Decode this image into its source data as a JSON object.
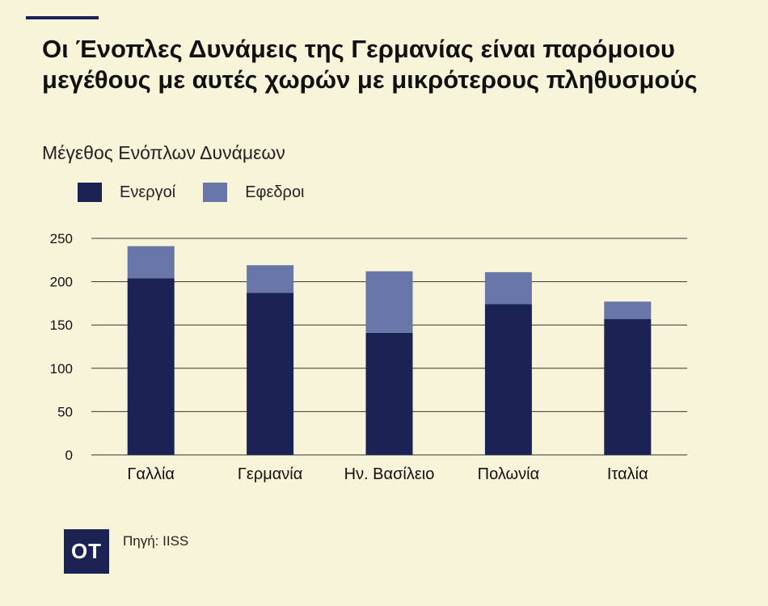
{
  "title": "Οι Ένοπλες Δυνάμεις της Γερμανίας είναι παρόμοιου μεγέθους με αυτές χωρών με μικρότερους πληθυσμούς",
  "colors": {
    "background": "#f8f4d9",
    "active": "#1a2354",
    "reserve": "#6877a8",
    "grid": "#333333"
  },
  "chart_data": {
    "type": "bar",
    "stacked": true,
    "subtitle": "Μέγεθος Ενόπλων Δυνάμεων",
    "categories": [
      "Γαλλία",
      "Γερμανία",
      "Ην. Βασίλειο",
      "Πολωνία",
      "Ιταλία"
    ],
    "series": [
      {
        "name": "Ενεργοί",
        "color": "#1a2354",
        "values": [
          204,
          187,
          141,
          174,
          157
        ]
      },
      {
        "name": "Εφεδροί",
        "color": "#6877a8",
        "values": [
          37,
          32,
          71,
          37,
          20
        ]
      }
    ],
    "ylim": [
      0,
      250
    ],
    "yticks": [
      0,
      50,
      100,
      150,
      200,
      250
    ],
    "grid": true,
    "legend_position": "top-left"
  },
  "legend": [
    {
      "label": "Ενεργοί",
      "color": "#1a2354"
    },
    {
      "label": "Εφεδροι",
      "color": "#6877a8"
    }
  ],
  "logo_text": "OT",
  "source": "Πηγή: IISS"
}
